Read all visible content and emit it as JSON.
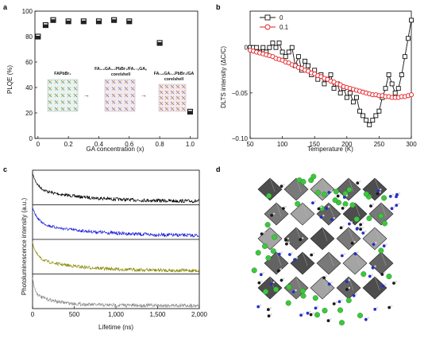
{
  "panels": {
    "a": {
      "label": "a",
      "chart_data": {
        "type": "scatter",
        "xlabel": "GA concentration (x)",
        "ylabel": "PLQE (%)",
        "xlim": [
          -0.02,
          1.05
        ],
        "ylim": [
          0,
          100
        ],
        "xticks": [
          0,
          0.2,
          0.4,
          0.6,
          0.8,
          1.0
        ],
        "xtick_labels": [
          "0",
          "0.2",
          "0.4",
          "0.6",
          "0.8",
          "1.0"
        ],
        "yticks": [
          0,
          20,
          40,
          60,
          80,
          100
        ],
        "ytick_labels": [
          "0",
          "20",
          "40",
          "60",
          "80",
          "100"
        ],
        "x": [
          0,
          0.05,
          0.1,
          0.2,
          0.3,
          0.4,
          0.5,
          0.6,
          0.8,
          1.0
        ],
        "y": [
          80,
          89,
          93,
          92,
          92,
          92,
          93,
          92,
          75,
          21
        ],
        "marker": "open-square",
        "inset_labels": [
          {
            "id": "inset-1",
            "lines": [
              "FAPbBr₃"
            ]
          },
          {
            "id": "inset-2",
            "lines": [
              "FA₀.₉GA₀.₁PbBr₃/FA₁₋ₓGAₓ",
              "core/shell"
            ]
          },
          {
            "id": "inset-3",
            "lines": [
              "FA₀.₉GA₀.₁PbBr₃/GA",
              "core/shell"
            ]
          }
        ]
      }
    },
    "b": {
      "label": "b",
      "chart_data": {
        "type": "line",
        "xlabel": "Temperature (K)",
        "ylabel": "DLTS intensity (ΔC/C)",
        "xlim": [
          50,
          300
        ],
        "ylim": [
          -0.1,
          0.04
        ],
        "xticks": [
          50,
          100,
          150,
          200,
          250,
          300
        ],
        "xtick_labels": [
          "50",
          "100",
          "150",
          "200",
          "250",
          "300"
        ],
        "yticks": [
          -0.1,
          -0.05,
          0
        ],
        "ytick_labels": [
          "−0.10",
          "−0.05",
          "0"
        ],
        "legend_position": "top-left",
        "series": [
          {
            "name": "0",
            "color": "#111111",
            "x": [
              50,
              55,
              60,
              65,
              70,
              75,
              80,
              85,
              90,
              95,
              100,
              105,
              110,
              115,
              120,
              125,
              130,
              135,
              140,
              145,
              150,
              155,
              160,
              165,
              170,
              175,
              180,
              185,
              190,
              195,
              200,
              205,
              210,
              215,
              220,
              225,
              230,
              235,
              240,
              245,
              250,
              255,
              260,
              265,
              270,
              275,
              280,
              285,
              290,
              295,
              300
            ],
            "y": [
              0.0,
              0.0,
              0.0,
              -0.005,
              0.0,
              -0.005,
              0.0,
              0.005,
              0.0,
              0.005,
              -0.005,
              -0.01,
              -0.005,
              0.0,
              -0.02,
              -0.01,
              -0.025,
              -0.015,
              -0.02,
              -0.03,
              -0.025,
              -0.035,
              -0.03,
              -0.04,
              -0.035,
              -0.03,
              -0.045,
              -0.04,
              -0.05,
              -0.045,
              -0.055,
              -0.05,
              -0.06,
              -0.055,
              -0.07,
              -0.075,
              -0.08,
              -0.085,
              -0.08,
              -0.075,
              -0.07,
              -0.055,
              -0.045,
              -0.03,
              -0.04,
              -0.05,
              -0.045,
              -0.03,
              -0.01,
              0.01,
              0.03
            ]
          },
          {
            "name": "0.1",
            "color": "#e8191e",
            "x": [
              50,
              55,
              60,
              65,
              70,
              75,
              80,
              85,
              90,
              95,
              100,
              105,
              110,
              115,
              120,
              125,
              130,
              135,
              140,
              145,
              150,
              155,
              160,
              165,
              170,
              175,
              180,
              185,
              190,
              195,
              200,
              205,
              210,
              215,
              220,
              225,
              230,
              235,
              240,
              245,
              250,
              255,
              260,
              265,
              270,
              275,
              280,
              285,
              290,
              295,
              300
            ],
            "y": [
              -0.003,
              -0.004,
              -0.005,
              -0.006,
              -0.007,
              -0.008,
              -0.009,
              -0.01,
              -0.012,
              -0.013,
              -0.014,
              -0.016,
              -0.017,
              -0.019,
              -0.02,
              -0.022,
              -0.023,
              -0.025,
              -0.026,
              -0.028,
              -0.029,
              -0.031,
              -0.032,
              -0.034,
              -0.035,
              -0.037,
              -0.038,
              -0.04,
              -0.041,
              -0.043,
              -0.044,
              -0.045,
              -0.046,
              -0.047,
              -0.048,
              -0.049,
              -0.05,
              -0.051,
              -0.052,
              -0.052,
              -0.053,
              -0.053,
              -0.054,
              -0.054,
              -0.055,
              -0.055,
              -0.055,
              -0.054,
              -0.054,
              -0.053,
              -0.052
            ]
          }
        ]
      }
    },
    "c": {
      "label": "c",
      "chart_data": {
        "type": "line",
        "xlabel": "Lifetime (ns)",
        "ylabel": "Photoluminescence intensity (a.u.)",
        "xlim": [
          0,
          2000
        ],
        "xticks": [
          0,
          500,
          1000,
          1500,
          2000
        ],
        "xtick_labels": [
          "0",
          "500",
          "1,000",
          "1,500",
          "2,000"
        ],
        "stacked": true,
        "series": [
          {
            "color": "#000000",
            "decay_ns": [
              60,
              600
            ]
          },
          {
            "color": "#1616d8",
            "decay_ns": [
              70,
              700
            ]
          },
          {
            "color": "#8c8c0a",
            "decay_ns": [
              50,
              500
            ]
          },
          {
            "color": "#8a8a8a",
            "decay_ns": [
              25,
              250
            ]
          }
        ]
      }
    },
    "d": {
      "label": "d",
      "image_description_icon": "crystal-structure-rendering"
    }
  }
}
